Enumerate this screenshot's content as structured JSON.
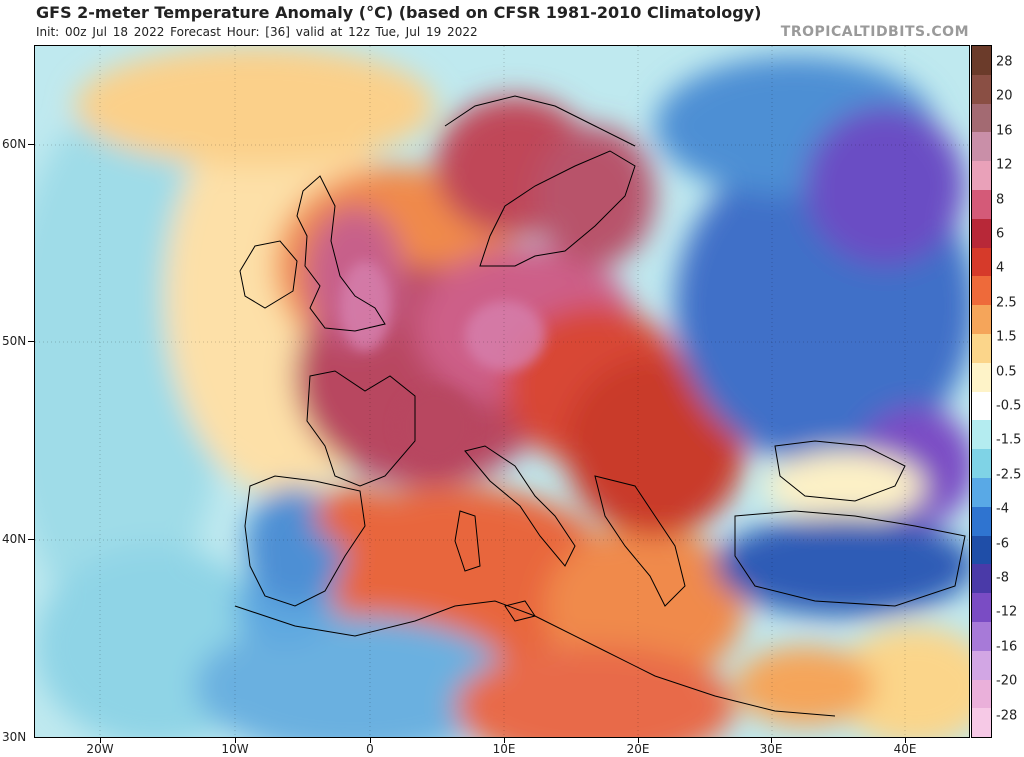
{
  "header": {
    "title": "GFS 2-meter Temperature Anomaly (°C) (based on CFSR 1981-2010 Climatology)",
    "subtitle": "Init: 00z Jul 18 2022   Forecast Hour: [36]   valid at 12z Tue, Jul 19 2022",
    "watermark": "TROPICALTIDBITS.COM"
  },
  "map": {
    "lat_labels": [
      "60N",
      "50N",
      "40N",
      "30N"
    ],
    "lon_labels": [
      "20W",
      "10W",
      "0",
      "10E",
      "20E",
      "30E",
      "40E"
    ],
    "colors": {
      "very_hot": "#a83a52",
      "hot": "#d84636",
      "warm": "#f08a4b",
      "mild": "#fbd89a",
      "neutral": "#fdf1c6",
      "cool": "#9fdce8",
      "cold": "#4e8fd4",
      "very_cold": "#2a56b0",
      "extreme_cold": "#7a4cc4",
      "extreme_hot": "#d680ad"
    }
  },
  "colorbar": {
    "labels": [
      "28",
      "20",
      "16",
      "12",
      "8",
      "6",
      "4",
      "2.5",
      "1.5",
      "0.5",
      "-0.5",
      "-1.5",
      "-2.5",
      "-4",
      "-6",
      "-8",
      "-12",
      "-16",
      "-20",
      "-28"
    ],
    "swatches": [
      "#6b3b2a",
      "#8a4f44",
      "#a36a72",
      "#c98fa8",
      "#e9a1b9",
      "#d45a78",
      "#b82838",
      "#d63a2a",
      "#ee6a3a",
      "#f5a55a",
      "#fbd58a",
      "#fef3c8",
      "#ffffff",
      "#b4ecf0",
      "#7fd3e6",
      "#59a9e6",
      "#2f74d0",
      "#1f4ea8",
      "#4a3aa8",
      "#7a4cc4",
      "#a77ad8",
      "#d2a6e4",
      "#eab0da",
      "#f6c9e6"
    ]
  }
}
